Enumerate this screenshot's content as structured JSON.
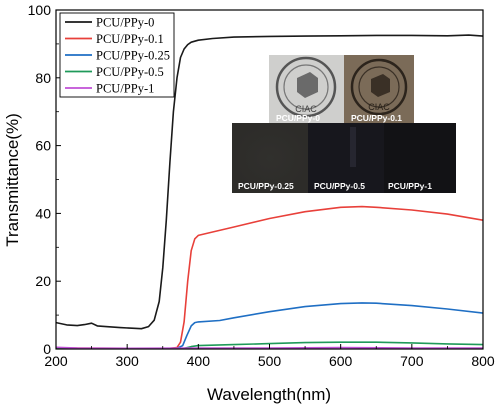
{
  "chart_data": {
    "type": "line",
    "xlabel": "Wavelength(nm)",
    "ylabel": "Transmittance(%)",
    "xlim": [
      200,
      800
    ],
    "ylim": [
      0,
      100
    ],
    "xticks": [
      200,
      300,
      400,
      500,
      600,
      700,
      800
    ],
    "yticks": [
      0,
      20,
      40,
      60,
      80,
      100
    ],
    "grid": false,
    "legend_placement": "top-left",
    "series": [
      {
        "name": "PCU/PPy-0",
        "color": "#1a1a1a",
        "points": [
          [
            200,
            7.8
          ],
          [
            215,
            7.1
          ],
          [
            230,
            6.9
          ],
          [
            240,
            7.2
          ],
          [
            250,
            7.6
          ],
          [
            258,
            6.8
          ],
          [
            270,
            6.6
          ],
          [
            290,
            6.3
          ],
          [
            310,
            6.1
          ],
          [
            320,
            6.0
          ],
          [
            330,
            6.6
          ],
          [
            338,
            8.5
          ],
          [
            345,
            14
          ],
          [
            350,
            24
          ],
          [
            355,
            38
          ],
          [
            360,
            55
          ],
          [
            365,
            70
          ],
          [
            370,
            80
          ],
          [
            375,
            86
          ],
          [
            380,
            88.5
          ],
          [
            385,
            89.8
          ],
          [
            390,
            90.5
          ],
          [
            400,
            91.1
          ],
          [
            420,
            91.6
          ],
          [
            450,
            92.0
          ],
          [
            500,
            92.2
          ],
          [
            550,
            92.3
          ],
          [
            600,
            92.4
          ],
          [
            650,
            92.5
          ],
          [
            700,
            92.5
          ],
          [
            750,
            92.4
          ],
          [
            780,
            92.6
          ],
          [
            800,
            92.3
          ]
        ]
      },
      {
        "name": "PCU/PPy-0.1",
        "color": "#e8403a",
        "points": [
          [
            200,
            0.3
          ],
          [
            300,
            0.2
          ],
          [
            360,
            0.2
          ],
          [
            370,
            0.4
          ],
          [
            375,
            2
          ],
          [
            380,
            8
          ],
          [
            385,
            20
          ],
          [
            390,
            29
          ],
          [
            395,
            32.5
          ],
          [
            400,
            33.5
          ],
          [
            420,
            34.5
          ],
          [
            450,
            36
          ],
          [
            500,
            38.5
          ],
          [
            550,
            40.5
          ],
          [
            600,
            41.8
          ],
          [
            630,
            42.0
          ],
          [
            650,
            41.8
          ],
          [
            700,
            41.0
          ],
          [
            750,
            39.8
          ],
          [
            800,
            38.0
          ]
        ]
      },
      {
        "name": "PCU/PPy-0.25",
        "color": "#1f6fc4",
        "points": [
          [
            200,
            0.2
          ],
          [
            300,
            0.1
          ],
          [
            370,
            0.2
          ],
          [
            378,
            1
          ],
          [
            384,
            4
          ],
          [
            390,
            6.8
          ],
          [
            395,
            7.8
          ],
          [
            400,
            8.0
          ],
          [
            430,
            8.4
          ],
          [
            450,
            9.2
          ],
          [
            500,
            11.0
          ],
          [
            550,
            12.5
          ],
          [
            600,
            13.4
          ],
          [
            630,
            13.6
          ],
          [
            650,
            13.5
          ],
          [
            700,
            12.8
          ],
          [
            750,
            11.8
          ],
          [
            800,
            10.6
          ]
        ]
      },
      {
        "name": "PCU/PPy-0.5",
        "color": "#1f9a5a",
        "points": [
          [
            200,
            0.1
          ],
          [
            300,
            0.1
          ],
          [
            380,
            0.2
          ],
          [
            390,
            0.7
          ],
          [
            400,
            1.0
          ],
          [
            450,
            1.3
          ],
          [
            500,
            1.6
          ],
          [
            550,
            1.9
          ],
          [
            600,
            2.0
          ],
          [
            650,
            2.0
          ],
          [
            700,
            1.8
          ],
          [
            750,
            1.5
          ],
          [
            800,
            1.3
          ]
        ]
      },
      {
        "name": "PCU/PPy-1",
        "color": "#c04fd6",
        "points": [
          [
            200,
            0.5
          ],
          [
            230,
            0.3
          ],
          [
            300,
            0.2
          ],
          [
            400,
            0.3
          ],
          [
            500,
            0.3
          ],
          [
            600,
            0.4
          ],
          [
            700,
            0.3
          ],
          [
            800,
            0.3
          ]
        ]
      }
    ],
    "inset_labels": [
      "PCU/PPy-0",
      "PCU/PPy-0.1",
      "PCU/PPy-0.25",
      "PCU/PPy-0.5",
      "PCU/PPy-1"
    ],
    "inset_logo_text": "CIAC"
  }
}
